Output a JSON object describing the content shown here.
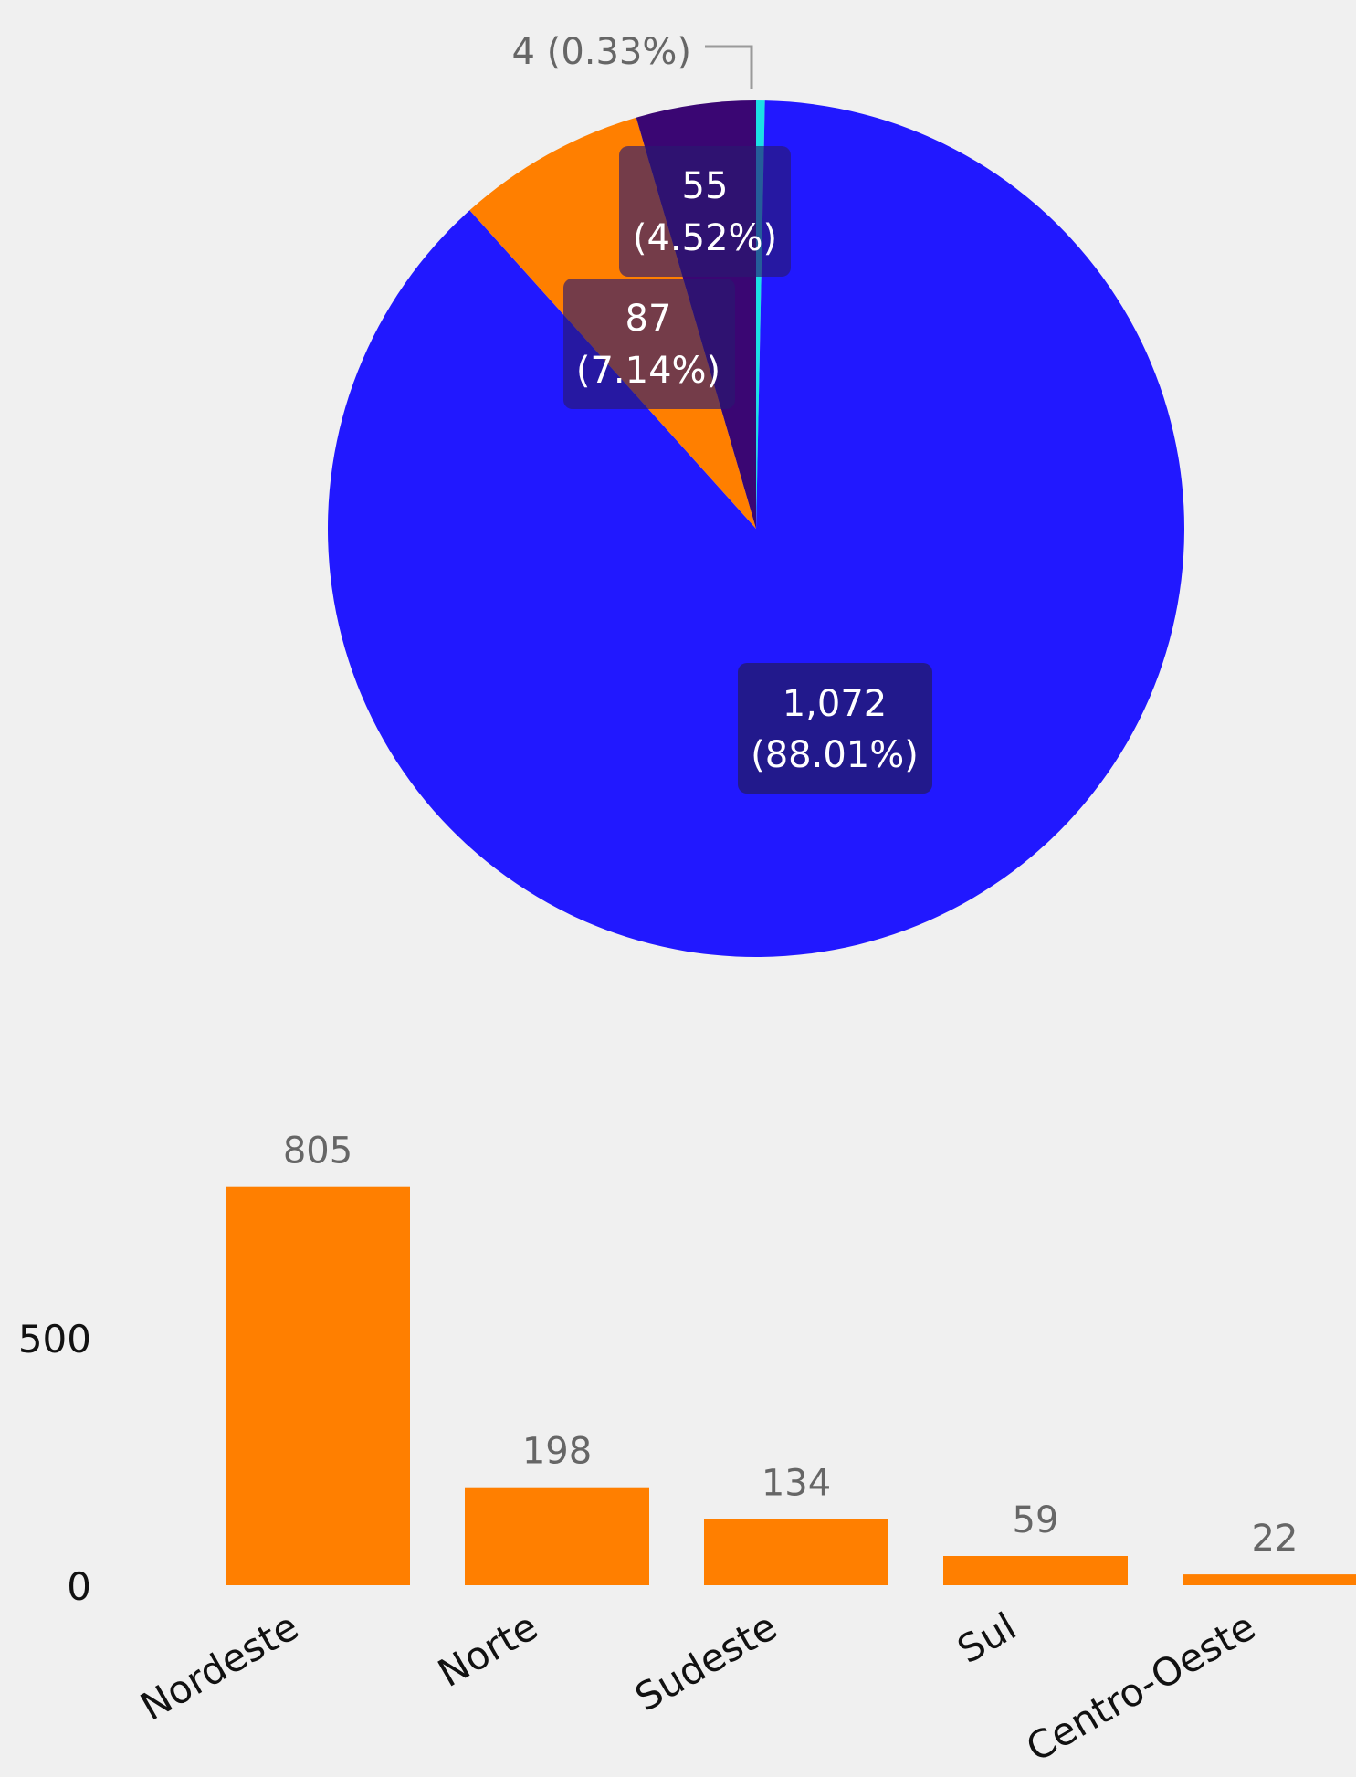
{
  "chart_data": [
    {
      "type": "pie",
      "slices": [
        {
          "value": 4,
          "percent": "0.33%",
          "label": "4 (0.33%)",
          "color": "#1be0e6"
        },
        {
          "value": 1072,
          "percent": "88.01%",
          "value_label": "1,072",
          "percent_label": "(88.01%)",
          "color": "#2118ff"
        },
        {
          "value": 87,
          "percent": "7.14%",
          "value_label": "87",
          "percent_label": "(7.14%)",
          "color": "#ff7f00"
        },
        {
          "value": 55,
          "percent": "4.52%",
          "value_label": "55",
          "percent_label": "(4.52%)",
          "color": "#3a0673"
        }
      ]
    },
    {
      "type": "bar",
      "categories": [
        "Nordeste",
        "Norte",
        "Sudeste",
        "Sul",
        "Centro-Oeste"
      ],
      "values": [
        805,
        198,
        134,
        59,
        22
      ],
      "data_labels": [
        "805",
        "198",
        "134",
        "59",
        "22"
      ],
      "y_ticks": [
        "0",
        "500"
      ],
      "ylim": [
        0,
        1000
      ],
      "grid": false,
      "color": "#ff7f00"
    }
  ]
}
